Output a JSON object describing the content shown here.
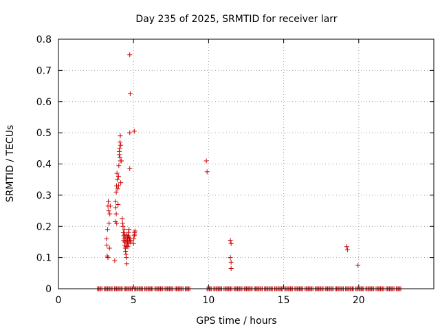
{
  "chart_data": {
    "type": "scatter",
    "title": "Day 235 of 2025, SRMTID for receiver larr",
    "xlabel": "GPS time / hours",
    "ylabel": "SRMTID / TECUs",
    "xlim": [
      0,
      25
    ],
    "ylim": [
      0,
      0.8
    ],
    "xticks": [
      0,
      5,
      10,
      15,
      20
    ],
    "yticks": [
      0,
      0.1,
      0.2,
      0.3,
      0.4,
      0.5,
      0.6,
      0.7,
      0.8
    ],
    "xtick_labels": [
      "0",
      "5",
      "10",
      "15",
      "20"
    ],
    "ytick_labels": [
      "0",
      "0.1",
      "0.2",
      "0.3",
      "0.4",
      "0.5",
      "0.6",
      "0.7",
      "0.8"
    ],
    "grid": true,
    "marker": "+",
    "color": "#cc0000",
    "series": [
      {
        "name": "SRMTID",
        "points": [
          [
            3.2,
            0.16
          ],
          [
            3.22,
            0.14
          ],
          [
            3.25,
            0.105
          ],
          [
            3.27,
            0.19
          ],
          [
            3.3,
            0.265
          ],
          [
            3.32,
            0.28
          ],
          [
            3.35,
            0.25
          ],
          [
            3.37,
            0.21
          ],
          [
            3.4,
            0.13
          ],
          [
            3.42,
            0.24
          ],
          [
            3.45,
            0.265
          ],
          [
            3.3,
            0.1
          ],
          [
            3.75,
            0.09
          ],
          [
            3.78,
            0.215
          ],
          [
            3.8,
            0.28
          ],
          [
            3.82,
            0.26
          ],
          [
            3.85,
            0.31
          ],
          [
            3.87,
            0.33
          ],
          [
            3.9,
            0.37
          ],
          [
            3.92,
            0.35
          ],
          [
            3.95,
            0.32
          ],
          [
            3.97,
            0.27
          ],
          [
            3.85,
            0.24
          ],
          [
            3.88,
            0.21
          ],
          [
            4.0,
            0.36
          ],
          [
            4.02,
            0.395
          ],
          [
            4.05,
            0.43
          ],
          [
            4.07,
            0.45
          ],
          [
            4.1,
            0.47
          ],
          [
            4.12,
            0.49
          ],
          [
            4.15,
            0.46
          ],
          [
            4.05,
            0.44
          ],
          [
            4.1,
            0.42
          ],
          [
            4.0,
            0.33
          ],
          [
            4.15,
            0.34
          ],
          [
            4.12,
            0.41
          ],
          [
            4.2,
            0.41
          ],
          [
            4.25,
            0.225
          ],
          [
            4.28,
            0.21
          ],
          [
            4.3,
            0.2
          ],
          [
            4.32,
            0.18
          ],
          [
            4.35,
            0.17
          ],
          [
            4.37,
            0.16
          ],
          [
            4.4,
            0.15
          ],
          [
            4.42,
            0.14
          ],
          [
            4.45,
            0.13
          ],
          [
            4.47,
            0.12
          ],
          [
            4.38,
            0.19
          ],
          [
            4.5,
            0.11
          ],
          [
            4.52,
            0.1
          ],
          [
            4.55,
            0.08
          ],
          [
            4.57,
            0.14
          ],
          [
            4.6,
            0.15
          ],
          [
            4.62,
            0.16
          ],
          [
            4.65,
            0.17
          ],
          [
            4.67,
            0.18
          ],
          [
            4.7,
            0.19
          ],
          [
            4.55,
            0.175
          ],
          [
            4.6,
            0.165
          ],
          [
            4.68,
            0.145
          ],
          [
            4.72,
            0.155
          ],
          [
            4.75,
            0.16
          ],
          [
            4.78,
            0.15
          ],
          [
            4.8,
            0.155
          ],
          [
            4.5,
            0.135
          ],
          [
            4.45,
            0.165
          ],
          [
            4.42,
            0.175
          ],
          [
            4.35,
            0.155
          ],
          [
            4.55,
            0.155
          ],
          [
            4.63,
            0.135
          ],
          [
            4.7,
            0.165
          ],
          [
            4.48,
            0.15
          ],
          [
            4.75,
            0.75
          ],
          [
            4.78,
            0.625
          ],
          [
            4.75,
            0.5
          ],
          [
            4.75,
            0.385
          ],
          [
            5.05,
            0.505
          ],
          [
            5.0,
            0.145
          ],
          [
            5.02,
            0.16
          ],
          [
            5.05,
            0.17
          ],
          [
            5.07,
            0.18
          ],
          [
            5.1,
            0.185
          ],
          [
            5.08,
            0.175
          ],
          [
            9.85,
            0.41
          ],
          [
            9.9,
            0.375
          ],
          [
            11.45,
            0.155
          ],
          [
            11.5,
            0.145
          ],
          [
            11.45,
            0.1
          ],
          [
            11.5,
            0.085
          ],
          [
            11.5,
            0.065
          ],
          [
            19.2,
            0.135
          ],
          [
            19.25,
            0.125
          ],
          [
            19.95,
            0.075
          ]
        ],
        "zero_runs": [
          [
            2.6,
            8.8
          ],
          [
            9.9,
            22.8
          ]
        ]
      }
    ]
  }
}
